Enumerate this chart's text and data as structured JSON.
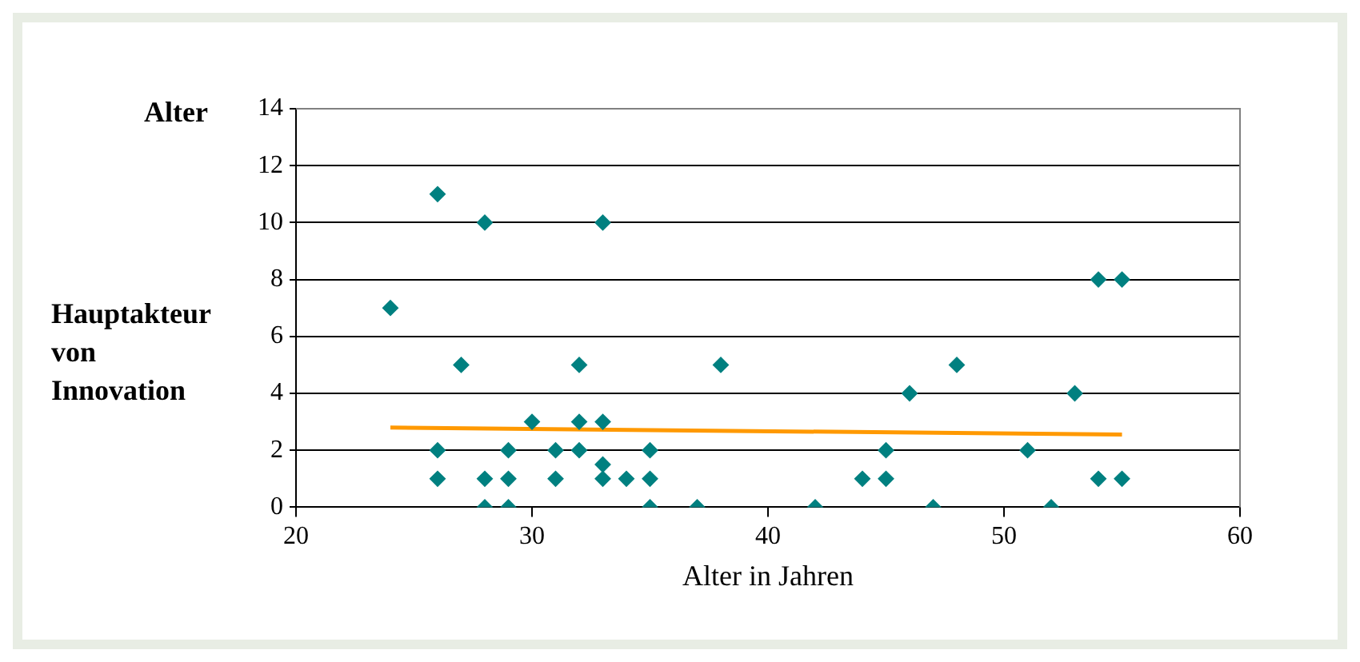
{
  "chart_data": {
    "type": "scatter",
    "xlabel": "Alter in Jahren",
    "ylabel": "Alter Hauptakteur von Innovation",
    "xlim": [
      20,
      60
    ],
    "xticks": [
      20,
      30,
      40,
      50,
      60
    ],
    "ylim": [
      0,
      14
    ],
    "yticks": [
      0,
      2,
      4,
      6,
      8,
      10,
      12,
      14
    ],
    "grid": "y",
    "legend": false,
    "series": [
      {
        "marker": "diamond",
        "color": "#008080",
        "x": [
          24,
          26,
          26,
          26,
          27,
          28,
          28,
          28,
          29,
          29,
          29,
          30,
          31,
          31,
          32,
          32,
          32,
          33,
          33,
          33,
          33,
          34,
          35,
          35,
          35,
          37,
          38,
          42,
          44,
          45,
          45,
          46,
          47,
          48,
          51,
          52,
          53,
          54,
          54,
          55,
          55
        ],
        "values": [
          7,
          11,
          2,
          1,
          5,
          10,
          1,
          0,
          2,
          1,
          0,
          3,
          2,
          1,
          5,
          3,
          2,
          10,
          3,
          1.5,
          1,
          1,
          2,
          1,
          0,
          0,
          5,
          0,
          1,
          2,
          1,
          4,
          0,
          5,
          2,
          0,
          4,
          8,
          1,
          8,
          1
        ]
      },
      {
        "type": "line",
        "color": "#ff9900",
        "x": [
          24,
          55
        ],
        "values": [
          2.8,
          2.55
        ]
      }
    ]
  }
}
